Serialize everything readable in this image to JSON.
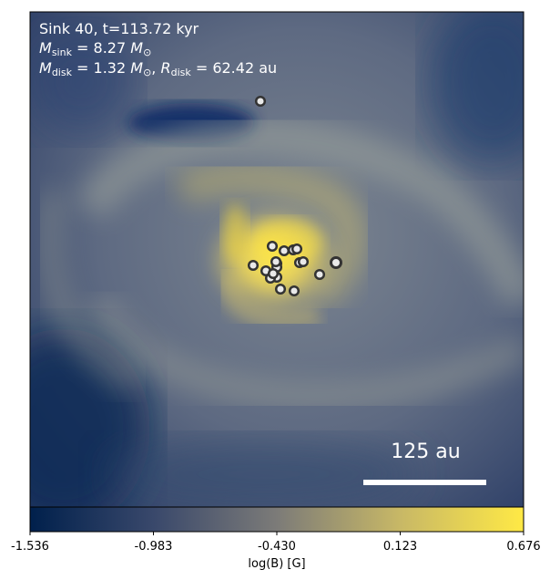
{
  "annotation": {
    "line1": "Sink 40, t=113.72 kyr",
    "m_symbol": "M",
    "sink_sub": "sink",
    "sink_value": "= 8.27",
    "msun_symbol": "M",
    "msun_sub": "⊙",
    "disk_sub": "disk",
    "disk_value": "= 1.32",
    "r_symbol": "R",
    "r_disk_value": "= 62.42 au"
  },
  "scalebar": {
    "label": "125 au"
  },
  "colorbar": {
    "label": "log(B) [G]",
    "ticks": [
      "-1.536",
      "-0.983",
      "-0.430",
      "0.123",
      "0.676"
    ],
    "min": -1.536,
    "max": 0.676,
    "colormap": "cividis",
    "colors": [
      "#00204c",
      "#39486b",
      "#7c7b78",
      "#c8b866",
      "#ffe945"
    ]
  },
  "sinks": {
    "count": 19,
    "marker_fill": "#e9e9e9",
    "marker_edge": "#333333"
  }
}
